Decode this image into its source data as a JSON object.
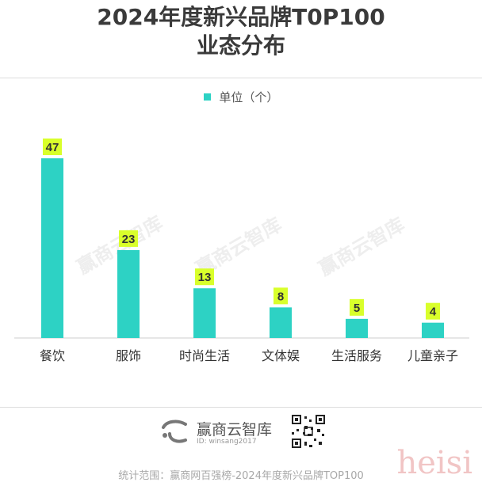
{
  "title_line1": "2024年度新兴品牌T0P100",
  "title_line2": "业态分布",
  "legend_label": "单位（个）",
  "watermark_text": "赢商云智库",
  "footer": {
    "brand": "赢商云智库",
    "id_text": "ID: winsang2017",
    "footnote": "统计范围：赢商网百强榜-2024年度新兴品牌TOP100"
  },
  "corner_watermark": "heisi",
  "chart_data": {
    "type": "bar",
    "categories": [
      "餐饮",
      "服饰",
      "时尚生活",
      "文体娱",
      "生活服务",
      "儿童亲子"
    ],
    "series": [
      {
        "name": "单位（个）",
        "values": [
          47,
          23,
          13,
          8,
          5,
          4
        ]
      }
    ],
    "bar_color": "#2dd2c4",
    "label_bg_color": "#d9ff2b",
    "legend_position": "top-center",
    "grid": false
  }
}
